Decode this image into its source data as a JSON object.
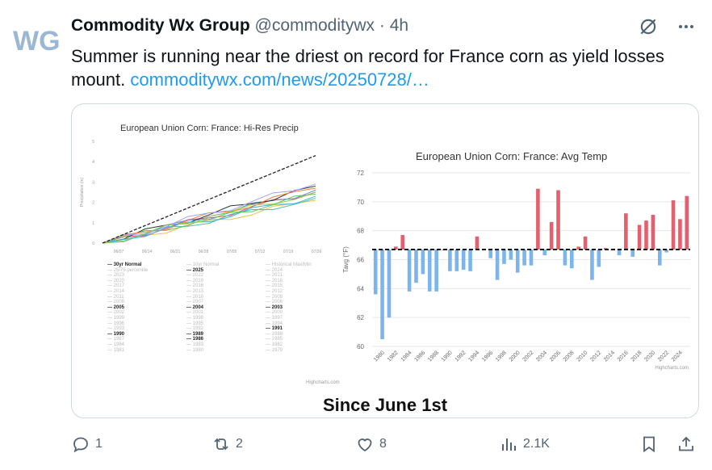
{
  "tweet": {
    "author_name": "Commodity Wx Group",
    "handle": "@commoditywx",
    "separator": "·",
    "time": "4h",
    "text": "Summer is running near the driest on record for France corn as yield losses mount.",
    "link": "commoditywx.com/news/20250728/…",
    "avatar_text": "WG"
  },
  "media": {
    "caption": "Since June 1st",
    "left_chart": {
      "title": "European Union Corn: France: Hi-Res Precip",
      "ylabel": "Precipitation (in)",
      "y_ticks": [
        "0",
        "1",
        "2",
        "3",
        "4",
        "5"
      ],
      "x_ticks": [
        "06/07",
        "06/14",
        "06/21",
        "06/28",
        "07/05",
        "07/12",
        "07/19",
        "07/26"
      ],
      "credit": "Highcharts.com",
      "legend": [
        [
          "30yr Normal",
          "25/75 percentile",
          "2023",
          "2020",
          "2017",
          "2014",
          "2011",
          "2008",
          "2005",
          "2002",
          "1999",
          "1996",
          "1993",
          "1990",
          "1987",
          "1984",
          "1981"
        ],
        [
          "10yr Normal",
          "2025",
          "2022",
          "2019",
          "2016",
          "2013",
          "2010",
          "2007",
          "2004",
          "2001",
          "1998",
          "1995",
          "1992",
          "1989",
          "1986",
          "1983",
          "1980"
        ],
        [
          "Historical Max/Min",
          "2024",
          "2021",
          "2018",
          "2015",
          "2012",
          "2009",
          "2006",
          "2003",
          "2000",
          "1997",
          "1994",
          "1991",
          "1988",
          "1985",
          "1982",
          "1979"
        ]
      ],
      "legend_dark": [
        "30yr Normal",
        "2025",
        "2005",
        "2004",
        "2003",
        "1991",
        "1990",
        "1989",
        "1986"
      ]
    },
    "chart_data": {
      "type": "bar",
      "title": "European Union Corn: France: Avg Temp",
      "ylabel": "Tavg (°F)",
      "ylim": [
        60,
        72
      ],
      "baseline": 66.7,
      "credit": "Highcharts.com",
      "y_ticks": [
        "60",
        "62",
        "64",
        "66",
        "68",
        "70",
        "72"
      ],
      "x_tick_labels": [
        "1980",
        "1982",
        "1984",
        "1986",
        "1988",
        "1990",
        "1992",
        "1994",
        "1996",
        "1998",
        "2000",
        "2002",
        "2004",
        "2006",
        "2008",
        "2010",
        "2012",
        "2014",
        "2016",
        "2018",
        "2020",
        "2022",
        "2024"
      ],
      "categories": [
        1979,
        1980,
        1981,
        1982,
        1983,
        1984,
        1985,
        1986,
        1987,
        1988,
        1989,
        1990,
        1991,
        1992,
        1993,
        1994,
        1995,
        1996,
        1997,
        1998,
        1999,
        2000,
        2001,
        2002,
        2003,
        2004,
        2005,
        2006,
        2007,
        2008,
        2009,
        2010,
        2011,
        2012,
        2013,
        2014,
        2015,
        2016,
        2017,
        2018,
        2019,
        2020,
        2021,
        2022,
        2023,
        2024,
        2025
      ],
      "values": [
        63.6,
        60.5,
        62.0,
        66.9,
        67.7,
        63.8,
        64.4,
        65.0,
        63.8,
        63.8,
        66.7,
        65.2,
        65.2,
        65.3,
        65.2,
        67.6,
        66.7,
        66.1,
        64.6,
        65.7,
        66.0,
        65.1,
        65.6,
        65.6,
        70.9,
        66.3,
        68.6,
        70.8,
        65.6,
        65.4,
        66.9,
        67.6,
        64.6,
        65.5,
        66.8,
        66.7,
        66.3,
        69.2,
        66.2,
        68.4,
        68.7,
        69.1,
        65.6,
        66.5,
        70.1,
        68.8,
        70.4
      ]
    }
  },
  "actions": {
    "replies": "1",
    "reposts": "2",
    "likes": "8",
    "views": "2.1K"
  },
  "colors": {
    "link": "#1d9bf0",
    "above": "#e4606e",
    "below": "#7cb5ec",
    "muted": "#536471"
  }
}
